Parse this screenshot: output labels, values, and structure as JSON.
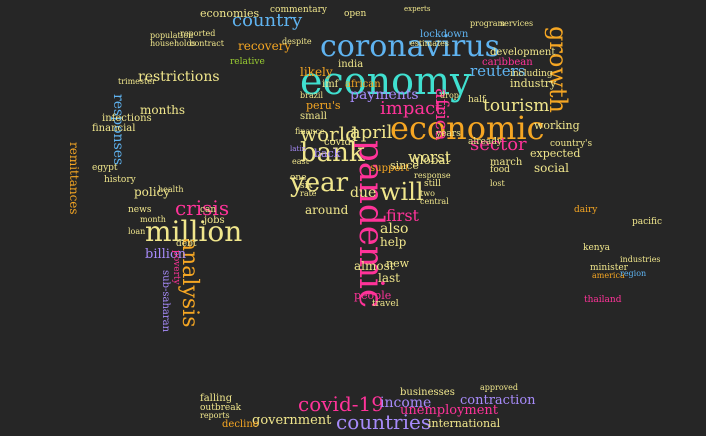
{
  "palette": {
    "background": "#262626",
    "blue": "#5fb3f0",
    "orange": "#f5a623",
    "green": "#9acd32",
    "pink": "#ff3399",
    "purple": "#a78bfa",
    "yellow": "#f0e68c",
    "red": "#ff4d4d",
    "cyan": "#40e0d0",
    "lime": "#c5e84a"
  },
  "words": [
    {
      "text": "coronavirus"
    },
    {
      "text": "economy"
    },
    {
      "text": "economic"
    },
    {
      "text": "growth"
    },
    {
      "text": "pandemic"
    },
    {
      "text": "bank"
    },
    {
      "text": "year"
    },
    {
      "text": "million"
    },
    {
      "text": "world"
    },
    {
      "text": "april"
    },
    {
      "text": "sector"
    },
    {
      "text": "crisis"
    },
    {
      "text": "country"
    },
    {
      "text": "analysis"
    },
    {
      "text": "covid-19"
    },
    {
      "text": "countries"
    },
    {
      "text": "africa"
    },
    {
      "text": "tourism"
    },
    {
      "text": "reuters"
    },
    {
      "text": "impact"
    },
    {
      "text": "will"
    },
    {
      "text": "restrictions"
    },
    {
      "text": "responses"
    },
    {
      "text": "payments"
    },
    {
      "text": "worst"
    },
    {
      "text": "first"
    },
    {
      "text": "billion"
    },
    {
      "text": "income"
    },
    {
      "text": "unemployment"
    },
    {
      "text": "contraction"
    },
    {
      "text": "government"
    },
    {
      "text": "international"
    },
    {
      "text": "recovery"
    },
    {
      "text": "economies"
    },
    {
      "text": "commentary"
    },
    {
      "text": "relative"
    },
    {
      "text": "lockdown"
    },
    {
      "text": "open"
    },
    {
      "text": "due"
    },
    {
      "text": "also"
    },
    {
      "text": "help"
    },
    {
      "text": "around"
    },
    {
      "text": "back"
    },
    {
      "text": "global"
    },
    {
      "text": "social"
    },
    {
      "text": "expected"
    },
    {
      "text": "working"
    },
    {
      "text": "industry"
    },
    {
      "text": "caribbean"
    },
    {
      "text": "latin"
    },
    {
      "text": "america"
    },
    {
      "text": "minister"
    },
    {
      "text": "kenya"
    },
    {
      "text": "dairy"
    },
    {
      "text": "pacific"
    },
    {
      "text": "months"
    },
    {
      "text": "financial"
    },
    {
      "text": "policy"
    },
    {
      "text": "month"
    },
    {
      "text": "jobs"
    },
    {
      "text": "news"
    },
    {
      "text": "people"
    },
    {
      "text": "almost"
    },
    {
      "text": "last"
    },
    {
      "text": "still"
    },
    {
      "text": "support"
    },
    {
      "text": "since"
    },
    {
      "text": "covid"
    },
    {
      "text": "march"
    },
    {
      "text": "food"
    },
    {
      "text": "falling"
    },
    {
      "text": "businesses"
    },
    {
      "text": "decline"
    },
    {
      "text": "likely"
    },
    {
      "text": "african"
    },
    {
      "text": "imf"
    },
    {
      "text": "india"
    },
    {
      "text": "years"
    },
    {
      "text": "finance"
    },
    {
      "text": "rate"
    },
    {
      "text": "half"
    },
    {
      "text": "including"
    },
    {
      "text": "development"
    },
    {
      "text": "remittances"
    },
    {
      "text": "infections"
    },
    {
      "text": "already"
    },
    {
      "text": "country's"
    },
    {
      "text": "new"
    },
    {
      "text": "can"
    },
    {
      "text": "despite"
    },
    {
      "text": "estimates"
    },
    {
      "text": "outbreak"
    },
    {
      "text": "approved"
    },
    {
      "text": "travel"
    },
    {
      "text": "egypt"
    },
    {
      "text": "history"
    },
    {
      "text": "health"
    },
    {
      "text": "debt"
    },
    {
      "text": "sub-saharan"
    },
    {
      "text": "poverty"
    },
    {
      "text": "loan"
    },
    {
      "text": "thailand"
    },
    {
      "text": "industries"
    },
    {
      "text": "region"
    },
    {
      "text": "peru's"
    },
    {
      "text": "small"
    },
    {
      "text": "one"
    },
    {
      "text": "six"
    },
    {
      "text": "east"
    },
    {
      "text": "lost"
    },
    {
      "text": "response"
    },
    {
      "text": "drop"
    },
    {
      "text": "reports"
    },
    {
      "text": "experts"
    },
    {
      "text": "central"
    },
    {
      "text": "brazil"
    },
    {
      "text": "two"
    },
    {
      "text": "program"
    },
    {
      "text": "services"
    },
    {
      "text": "contract"
    },
    {
      "text": "reported"
    },
    {
      "text": "population"
    },
    {
      "text": "households"
    },
    {
      "text": "trimester"
    }
  ]
}
